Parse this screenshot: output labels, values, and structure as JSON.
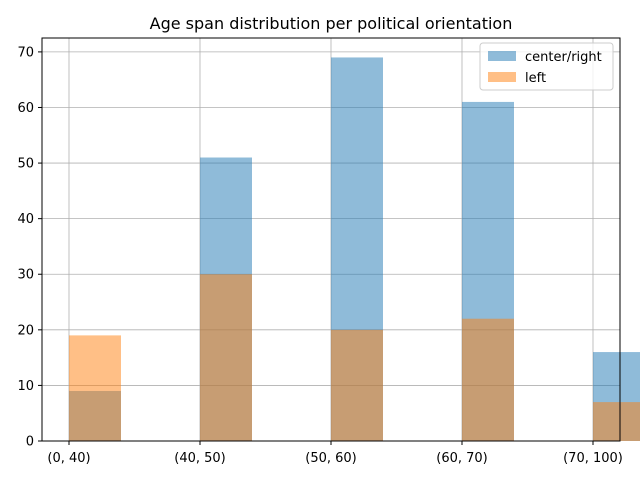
{
  "chart_data": {
    "type": "bar",
    "title": "Age span distribution per political orientation",
    "xlabel": "",
    "ylabel": "",
    "categories": [
      "(0, 40)",
      "(40, 50)",
      "(50, 60)",
      "(60, 70)",
      "(70, 100)"
    ],
    "series": [
      {
        "name": "center/right",
        "values": [
          9,
          51,
          69,
          61,
          16
        ],
        "color": "#1f77b4"
      },
      {
        "name": "left",
        "values": [
          19,
          30,
          20,
          22,
          7
        ],
        "color": "#ff7f0e"
      }
    ],
    "bar_alpha": 0.5,
    "ylim": [
      0,
      72.5
    ],
    "yticks": [
      0,
      10,
      20,
      30,
      40,
      50,
      60,
      70
    ],
    "grid": true,
    "legend": "top-right"
  }
}
